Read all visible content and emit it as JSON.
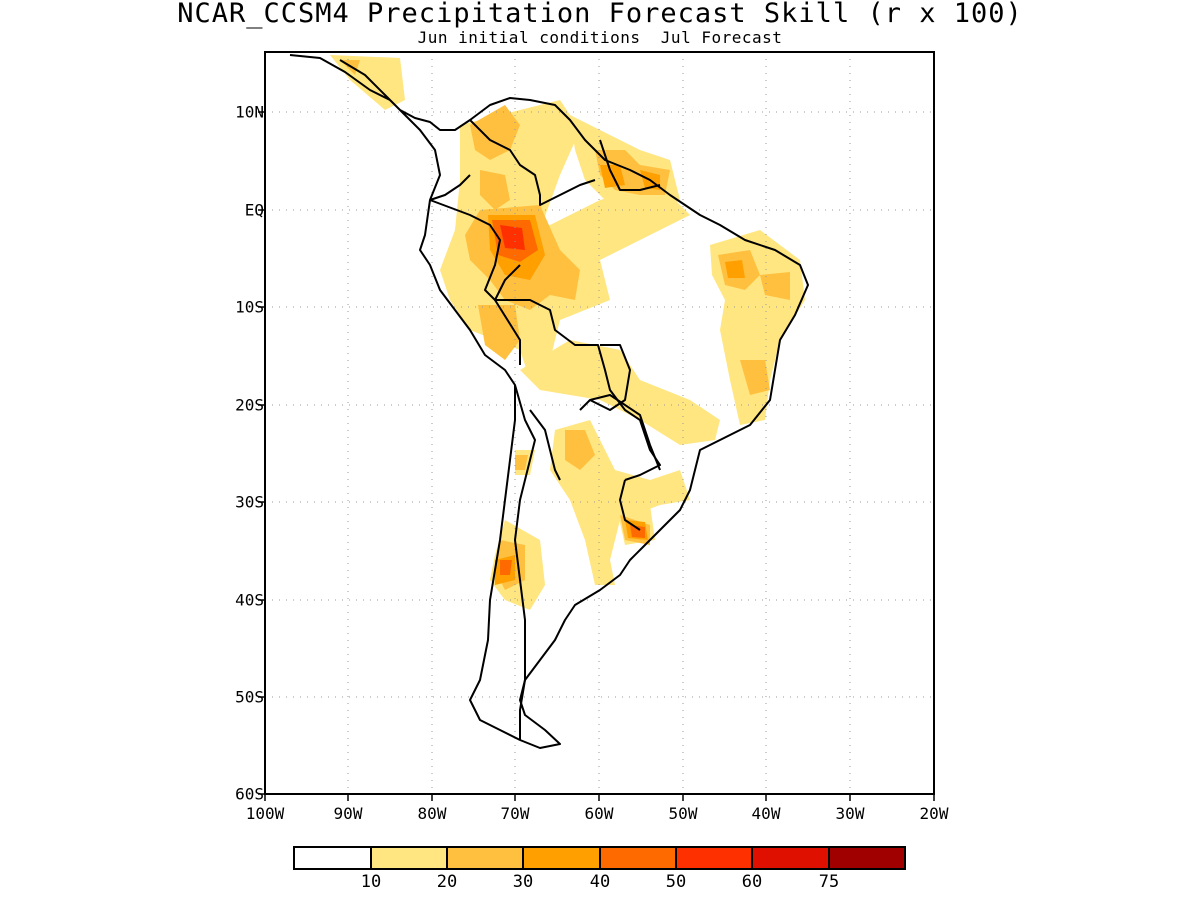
{
  "header": {
    "title": "NCAR_CCSM4 Precipitation Forecast Skill (r x 100)",
    "subtitle": "Jun initial conditions  Jul Forecast"
  },
  "map": {
    "lat_ticks": [
      "10N",
      "EQ",
      "10S",
      "20S",
      "30S",
      "40S",
      "50S",
      "60S"
    ],
    "lon_ticks": [
      "100W",
      "90W",
      "80W",
      "70W",
      "60W",
      "50W",
      "40W",
      "30W",
      "20W"
    ]
  },
  "colorbar": {
    "labels": [
      "10",
      "20",
      "30",
      "40",
      "50",
      "60",
      "75"
    ],
    "colors": [
      "#ffffff",
      "#ffe680",
      "#ffc040",
      "#ffa000",
      "#ff6a00",
      "#ff3000",
      "#e01000",
      "#a00000"
    ]
  }
}
